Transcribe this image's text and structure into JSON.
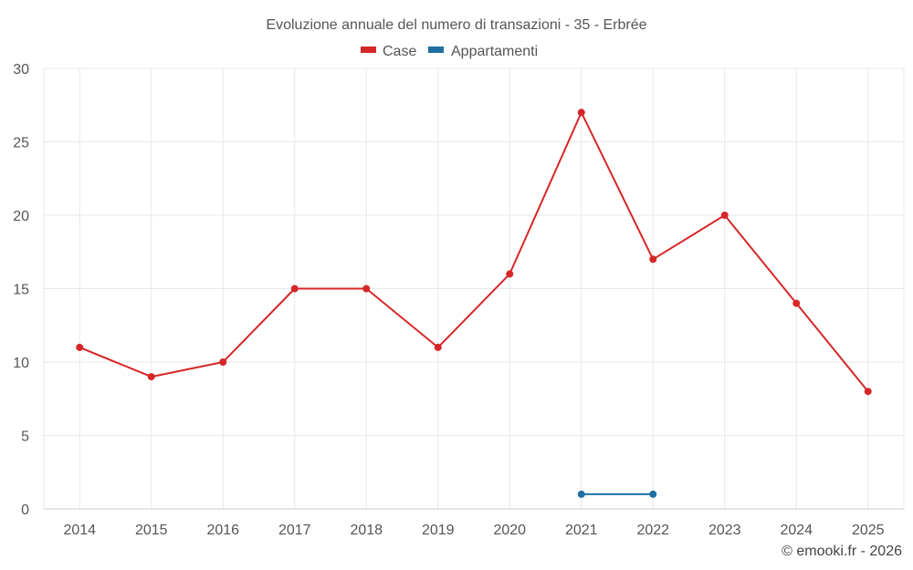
{
  "chart_data": {
    "type": "line",
    "title": "Evoluzione annuale del numero di transazioni - 35 - Erbrée",
    "categories": [
      "2014",
      "2015",
      "2016",
      "2017",
      "2018",
      "2019",
      "2020",
      "2021",
      "2022",
      "2023",
      "2024",
      "2025"
    ],
    "series": [
      {
        "name": "Case",
        "color": "#d62728",
        "values": [
          11,
          9,
          10,
          15,
          15,
          11,
          16,
          27,
          17,
          20,
          14,
          8
        ]
      },
      {
        "name": "Appartamenti",
        "color": "#1f6fa3",
        "values": [
          null,
          null,
          null,
          null,
          null,
          null,
          null,
          1,
          1,
          null,
          null,
          null
        ]
      }
    ],
    "ylim": [
      0,
      30
    ],
    "yticks": [
      0,
      5,
      10,
      15,
      20,
      25,
      30
    ],
    "xlabel": "",
    "ylabel": "",
    "grid": true,
    "legend": "top-center"
  },
  "credit": "© emooki.fr - 2026"
}
